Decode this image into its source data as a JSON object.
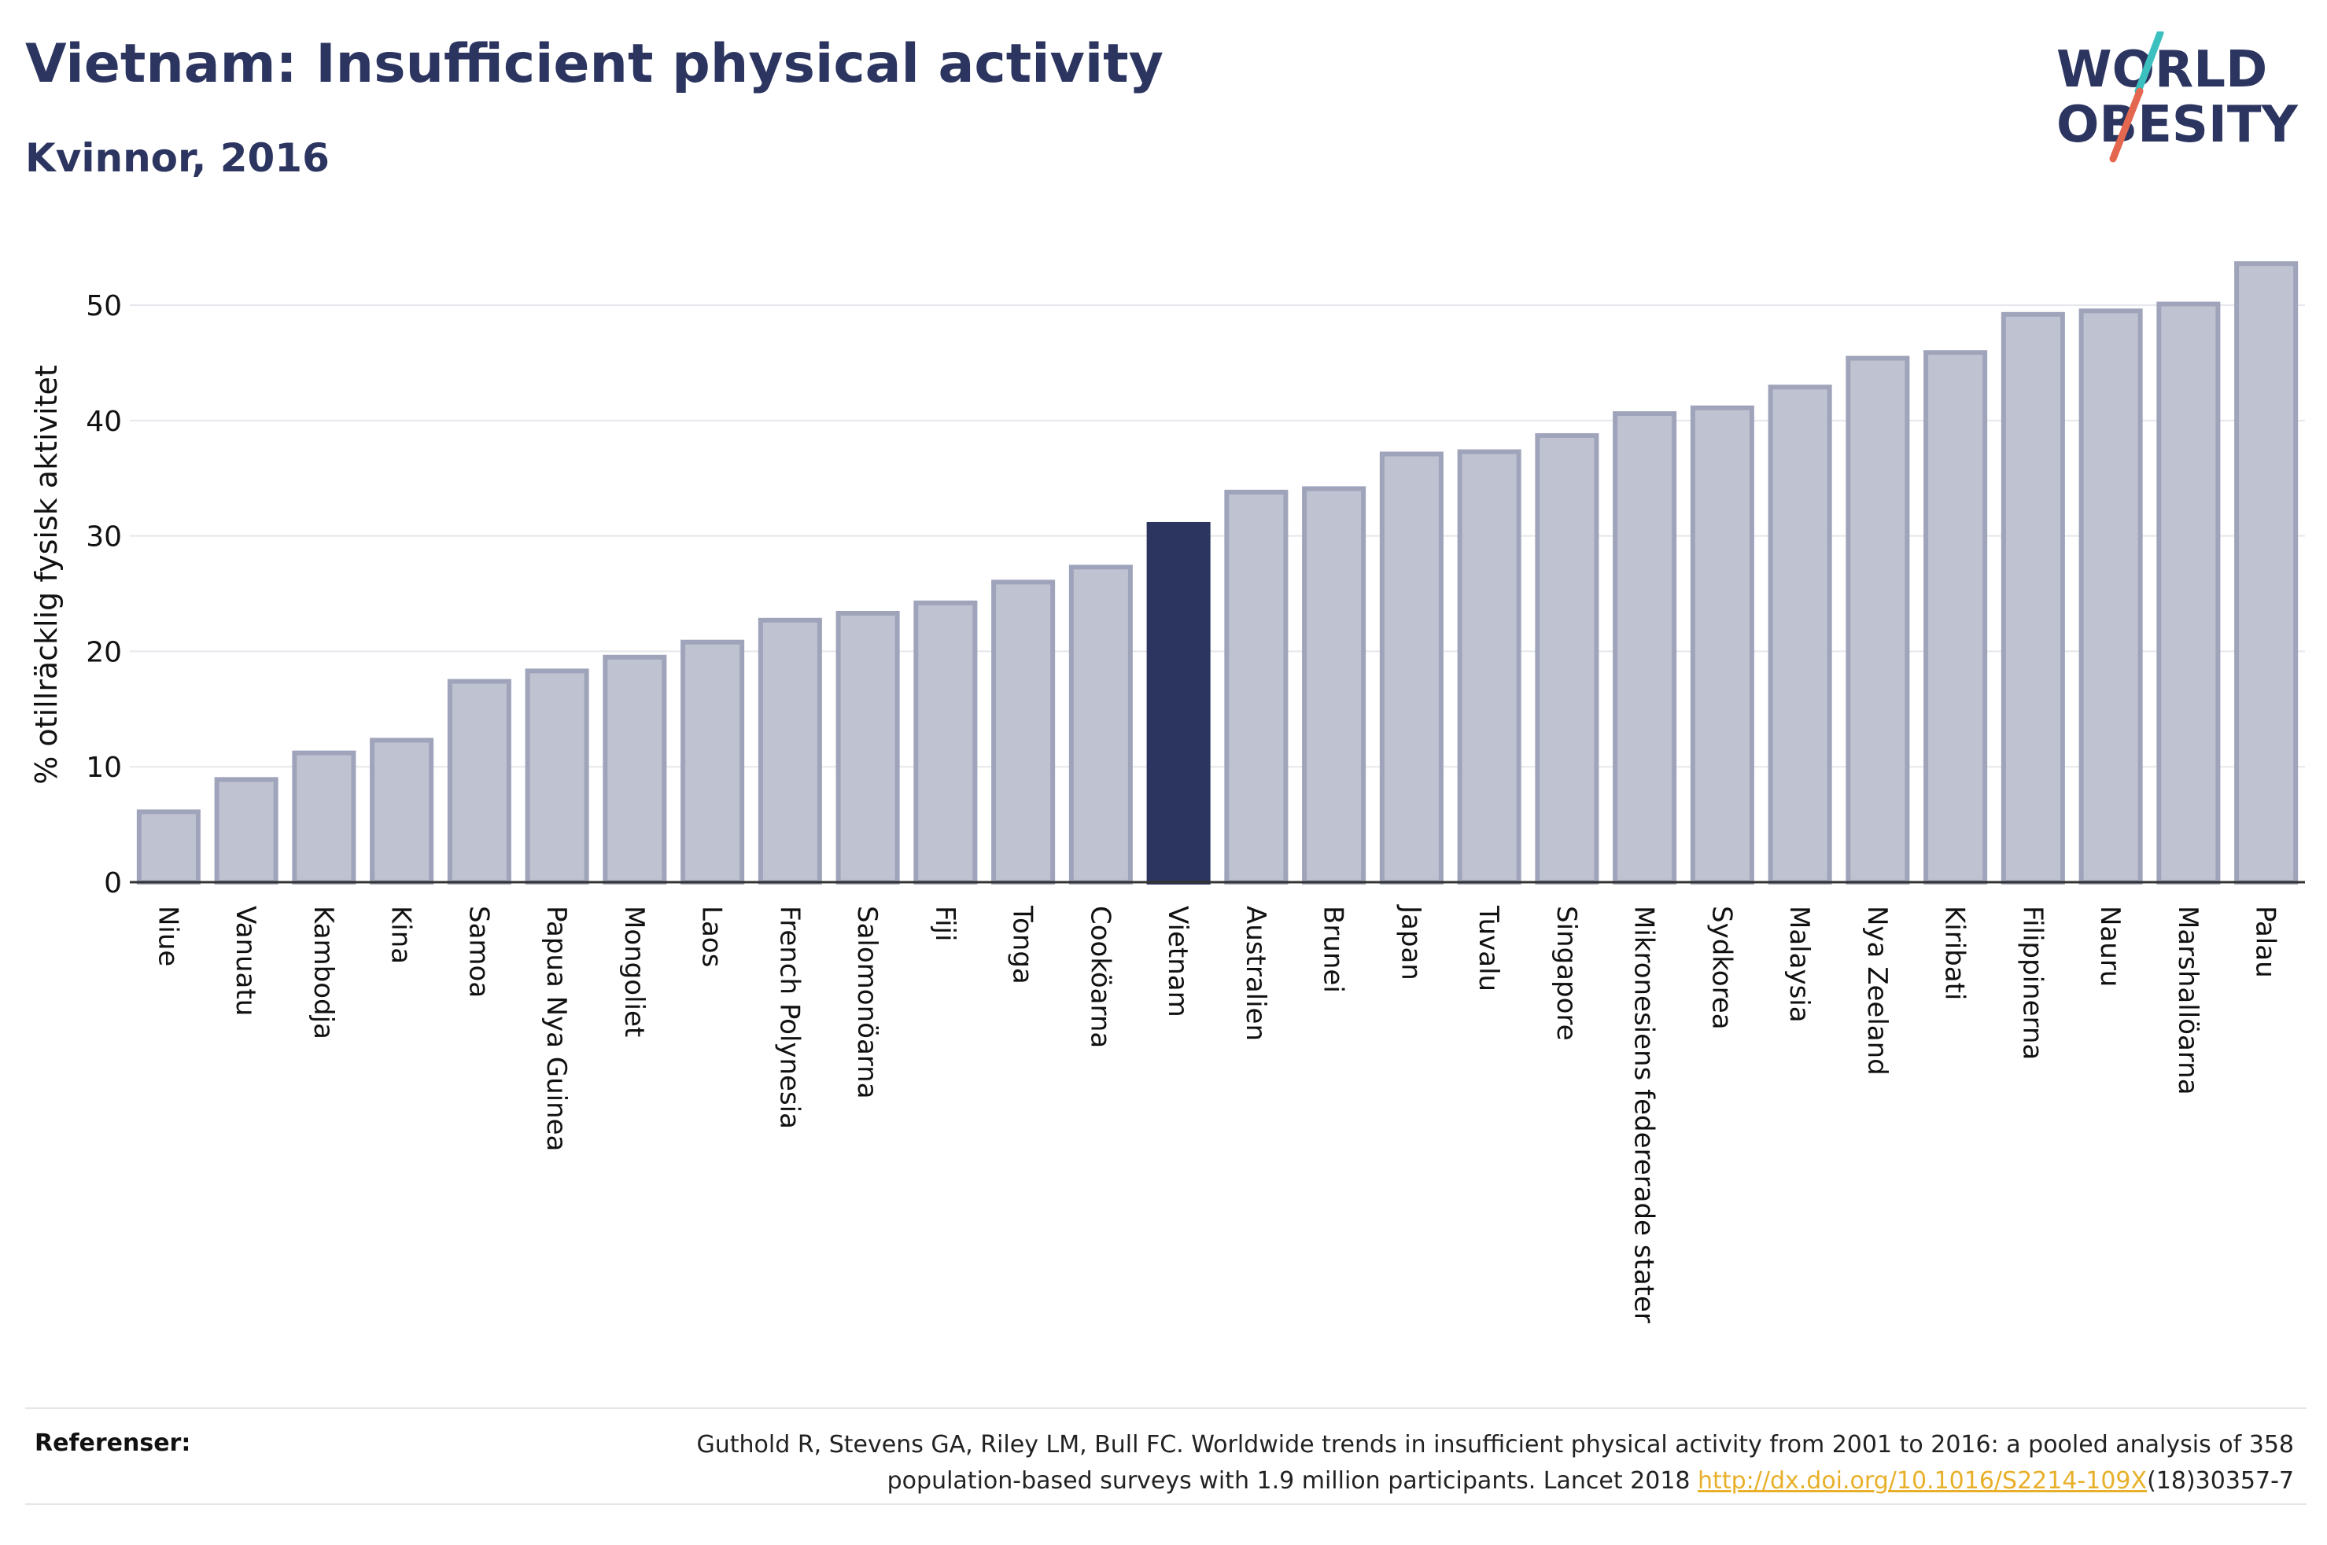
{
  "header": {
    "title": "Vietnam: Insufficient physical activity",
    "subtitle": "Kvinnor, 2016"
  },
  "logo": {
    "line1": "WORLD",
    "line2": "OBESITY",
    "accent_teal": "#3bbfbf",
    "accent_red": "#e4674f"
  },
  "chart_data": {
    "type": "bar",
    "title": "Vietnam: Insufficient physical activity",
    "subtitle": "Kvinnor, 2016",
    "ylabel": "% otillräcklig fysisk aktivitet",
    "xlabel": "",
    "ylim": [
      0,
      56
    ],
    "yticks": [
      0,
      10,
      20,
      30,
      40,
      50
    ],
    "grid": true,
    "highlight": "Vietnam",
    "colors": {
      "bar": "#bfc2d0",
      "bar_border": "#9fa4bb",
      "highlight": "#2c3560"
    },
    "categories": [
      "Niue",
      "Vanuatu",
      "Kambodja",
      "Kina",
      "Samoa",
      "Papua Nya Guinea",
      "Mongoliet",
      "Laos",
      "French Polynesia",
      "Salomonöarna",
      "Fiji",
      "Tonga",
      "Cooköarna",
      "Vietnam",
      "Australien",
      "Brunei",
      "Japan",
      "Tuvalu",
      "Singapore",
      "Mikronesiens federerade stater",
      "Sydkorea",
      "Malaysia",
      "Nya Zeeland",
      "Kiribati",
      "Filippinerna",
      "Nauru",
      "Marshallöarna",
      "Palau"
    ],
    "values": [
      6.1,
      8.9,
      11.2,
      12.3,
      17.4,
      18.3,
      19.5,
      20.8,
      22.7,
      23.3,
      24.2,
      26.0,
      27.3,
      31.0,
      33.8,
      34.1,
      37.1,
      37.3,
      38.7,
      40.6,
      41.1,
      42.9,
      45.4,
      45.9,
      49.2,
      49.5,
      50.1,
      53.6
    ]
  },
  "footer": {
    "ref_label": "Referenser:",
    "ref_text_1": "Guthold R, Stevens GA, Riley LM, Bull FC. Worldwide trends in insufficient physical activity from 2001 to 2016: a pooled analysis of 358",
    "ref_text_2": "population-based surveys with 1.9 million participants. Lancet 2018 ",
    "ref_link": "http://dx.doi.org/10.1016/S2214-109X",
    "ref_text_3": "(18)30357-7"
  }
}
